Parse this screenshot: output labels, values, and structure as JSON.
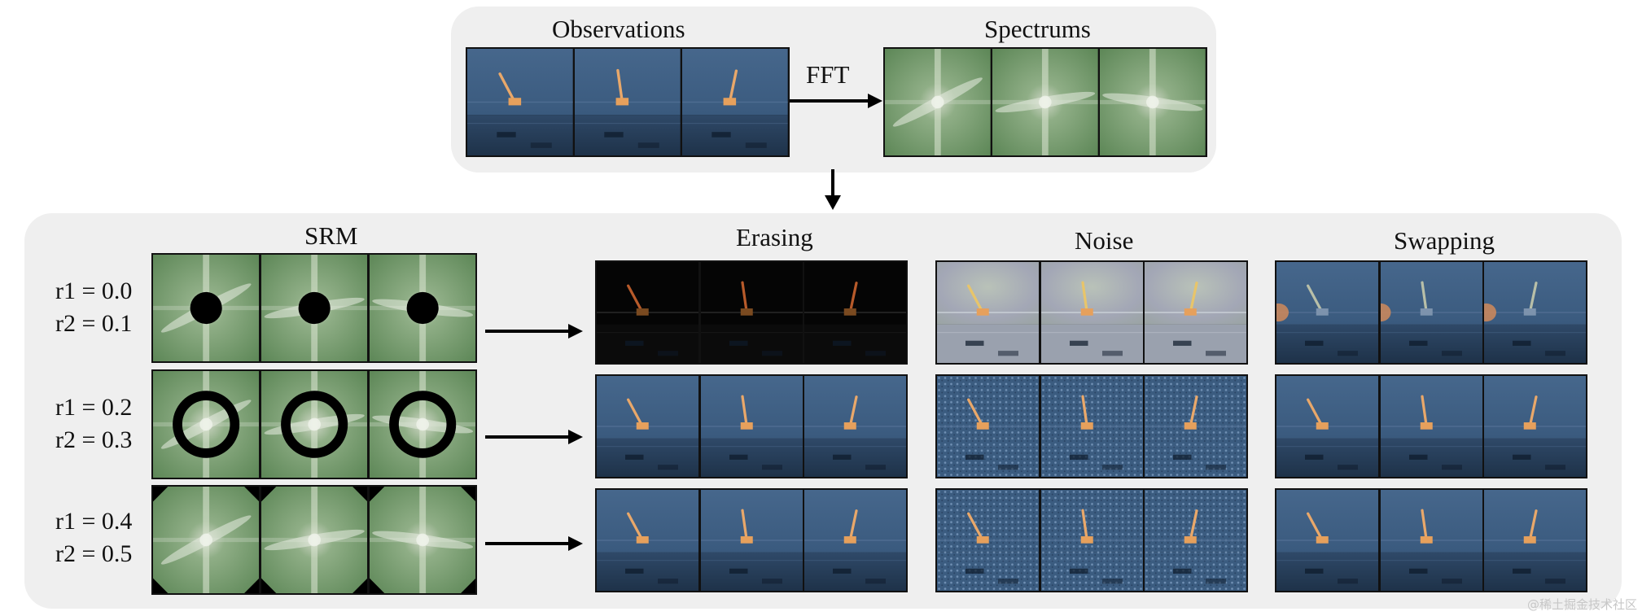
{
  "top": {
    "observations_label": "Observations",
    "spectrums_label": "Spectrums",
    "fft_label": "FFT"
  },
  "bottom": {
    "srm_label": "SRM",
    "columns": [
      "Erasing",
      "Noise",
      "Swapping"
    ],
    "rows": [
      {
        "r1": "r1 = 0.0",
        "r2": "r2 = 0.1",
        "mask": "disk"
      },
      {
        "r1": "r1 = 0.2",
        "r2": "r2 = 0.3",
        "mask": "ring"
      },
      {
        "r1": "r1 = 0.4",
        "r2": "r2 = 0.5",
        "mask": "corners"
      }
    ]
  },
  "watermark": "@稀土掘金技术社区",
  "colors": {
    "panel": "#efefef",
    "sky": "#3f5f82",
    "floor": "#243a55",
    "cart": "#e6a05c",
    "pole": "#e9a86a",
    "spectrum": "#6f9a6a",
    "mask": "#000000"
  }
}
